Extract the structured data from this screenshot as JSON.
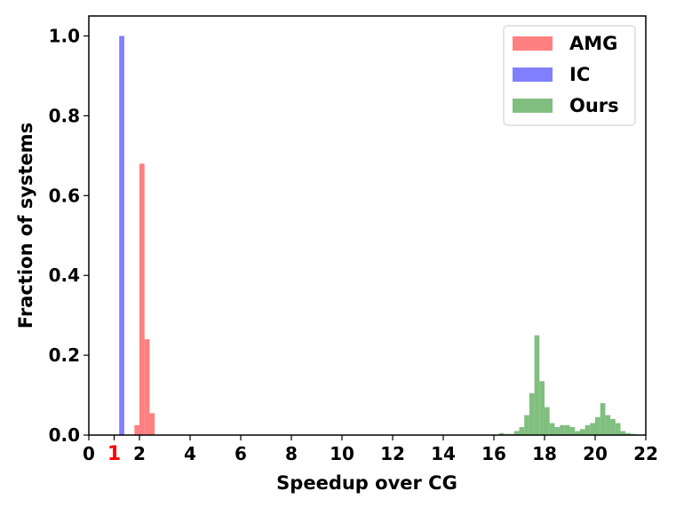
{
  "chart_data": {
    "type": "bar",
    "subtype": "histogram",
    "title": "",
    "xlabel": "Speedup over CG",
    "ylabel": "Fraction of systems",
    "xlim": [
      0,
      22
    ],
    "ylim": [
      0,
      1.05
    ],
    "xticks": [
      0,
      2,
      4,
      6,
      8,
      10,
      12,
      14,
      16,
      18,
      20,
      22
    ],
    "yticks": [
      0.0,
      0.2,
      0.4,
      0.6,
      0.8,
      1.0
    ],
    "xtick_labels": [
      "0",
      "2",
      "4",
      "6",
      "8",
      "10",
      "12",
      "14",
      "16",
      "18",
      "20",
      "22"
    ],
    "ytick_labels": [
      "0.0",
      "0.2",
      "0.4",
      "0.6",
      "0.8",
      "1.0"
    ],
    "extra_tick": {
      "value": 1,
      "label": "1",
      "color": "#ff0000"
    },
    "legend": {
      "position": "top-right"
    },
    "series": [
      {
        "name": "AMG",
        "color": "#ff8080",
        "bin_width": 0.2,
        "bins": [
          {
            "x0": 1.8,
            "value": 0.025
          },
          {
            "x0": 2.0,
            "value": 0.68
          },
          {
            "x0": 2.2,
            "value": 0.24
          },
          {
            "x0": 2.4,
            "value": 0.055
          }
        ]
      },
      {
        "name": "IC",
        "color": "#8080ff",
        "bin_width": 0.2,
        "bins": [
          {
            "x0": 1.2,
            "value": 1.0
          }
        ]
      },
      {
        "name": "Ours",
        "color": "#80bf80",
        "bin_width": 0.2,
        "bins": [
          {
            "x0": 16.2,
            "value": 0.005
          },
          {
            "x0": 16.4,
            "value": 0.003
          },
          {
            "x0": 16.6,
            "value": 0.003
          },
          {
            "x0": 16.8,
            "value": 0.01
          },
          {
            "x0": 17.0,
            "value": 0.02
          },
          {
            "x0": 17.2,
            "value": 0.05
          },
          {
            "x0": 17.4,
            "value": 0.105
          },
          {
            "x0": 17.6,
            "value": 0.25
          },
          {
            "x0": 17.8,
            "value": 0.135
          },
          {
            "x0": 18.0,
            "value": 0.07
          },
          {
            "x0": 18.2,
            "value": 0.03
          },
          {
            "x0": 18.4,
            "value": 0.02
          },
          {
            "x0": 18.6,
            "value": 0.025
          },
          {
            "x0": 18.8,
            "value": 0.025
          },
          {
            "x0": 19.0,
            "value": 0.02
          },
          {
            "x0": 19.2,
            "value": 0.01
          },
          {
            "x0": 19.4,
            "value": 0.015
          },
          {
            "x0": 19.6,
            "value": 0.025
          },
          {
            "x0": 19.8,
            "value": 0.03
          },
          {
            "x0": 20.0,
            "value": 0.045
          },
          {
            "x0": 20.2,
            "value": 0.08
          },
          {
            "x0": 20.4,
            "value": 0.05
          },
          {
            "x0": 20.6,
            "value": 0.04
          },
          {
            "x0": 20.8,
            "value": 0.03
          },
          {
            "x0": 21.0,
            "value": 0.01
          },
          {
            "x0": 21.2,
            "value": 0.005
          },
          {
            "x0": 21.4,
            "value": 0.003
          }
        ]
      }
    ]
  }
}
